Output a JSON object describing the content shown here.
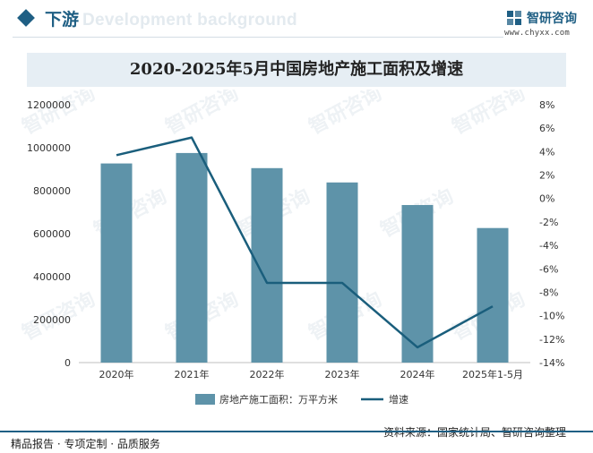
{
  "header": {
    "section_title": "下游",
    "ghost_text": "Development background",
    "logo_name": "智研咨询",
    "logo_url": "www.chyxx.com"
  },
  "watermark": {
    "text": "智研咨询"
  },
  "footer": {
    "left": "精品报告 · 专项定制 · 品质服务",
    "source": "资料来源：国家统计局、智研咨询整理"
  },
  "colors": {
    "bar": "#5e93a9",
    "line": "#1a5e7c",
    "brand": "#1f5f84"
  },
  "chart_data": {
    "type": "bar",
    "title": "2020-2025年5月中国房地产施工面积及增速",
    "categories": [
      "2020年",
      "2021年",
      "2022年",
      "2023年",
      "2024年",
      "2025年1-5月"
    ],
    "series": [
      {
        "name": "房地产施工面积：万平方米",
        "type": "bar",
        "axis": "left",
        "values": [
          926759,
          975387,
          904999,
          838364,
          733247,
          626229
        ]
      },
      {
        "name": "增速",
        "type": "line",
        "axis": "right",
        "values": [
          3.7,
          5.2,
          -7.2,
          -7.2,
          -12.7,
          -9.2
        ]
      }
    ],
    "y_left": {
      "min": 0,
      "max": 1200000,
      "ticks": [
        0,
        200000,
        400000,
        600000,
        800000,
        1000000,
        1200000
      ],
      "tick_labels": [
        "0",
        "200000",
        "400000",
        "600000",
        "800000",
        "1000000",
        "1200000"
      ]
    },
    "y_right": {
      "min": -14,
      "max": 8,
      "ticks": [
        -14,
        -12,
        -10,
        -8,
        -6,
        -4,
        -2,
        0,
        2,
        4,
        6,
        8
      ],
      "tick_labels": [
        "-14%",
        "-12%",
        "-10%",
        "-8%",
        "-6%",
        "-4%",
        "-2%",
        "0%",
        "2%",
        "4%",
        "6%",
        "8%"
      ]
    },
    "grid": false,
    "legend": "bottom"
  }
}
